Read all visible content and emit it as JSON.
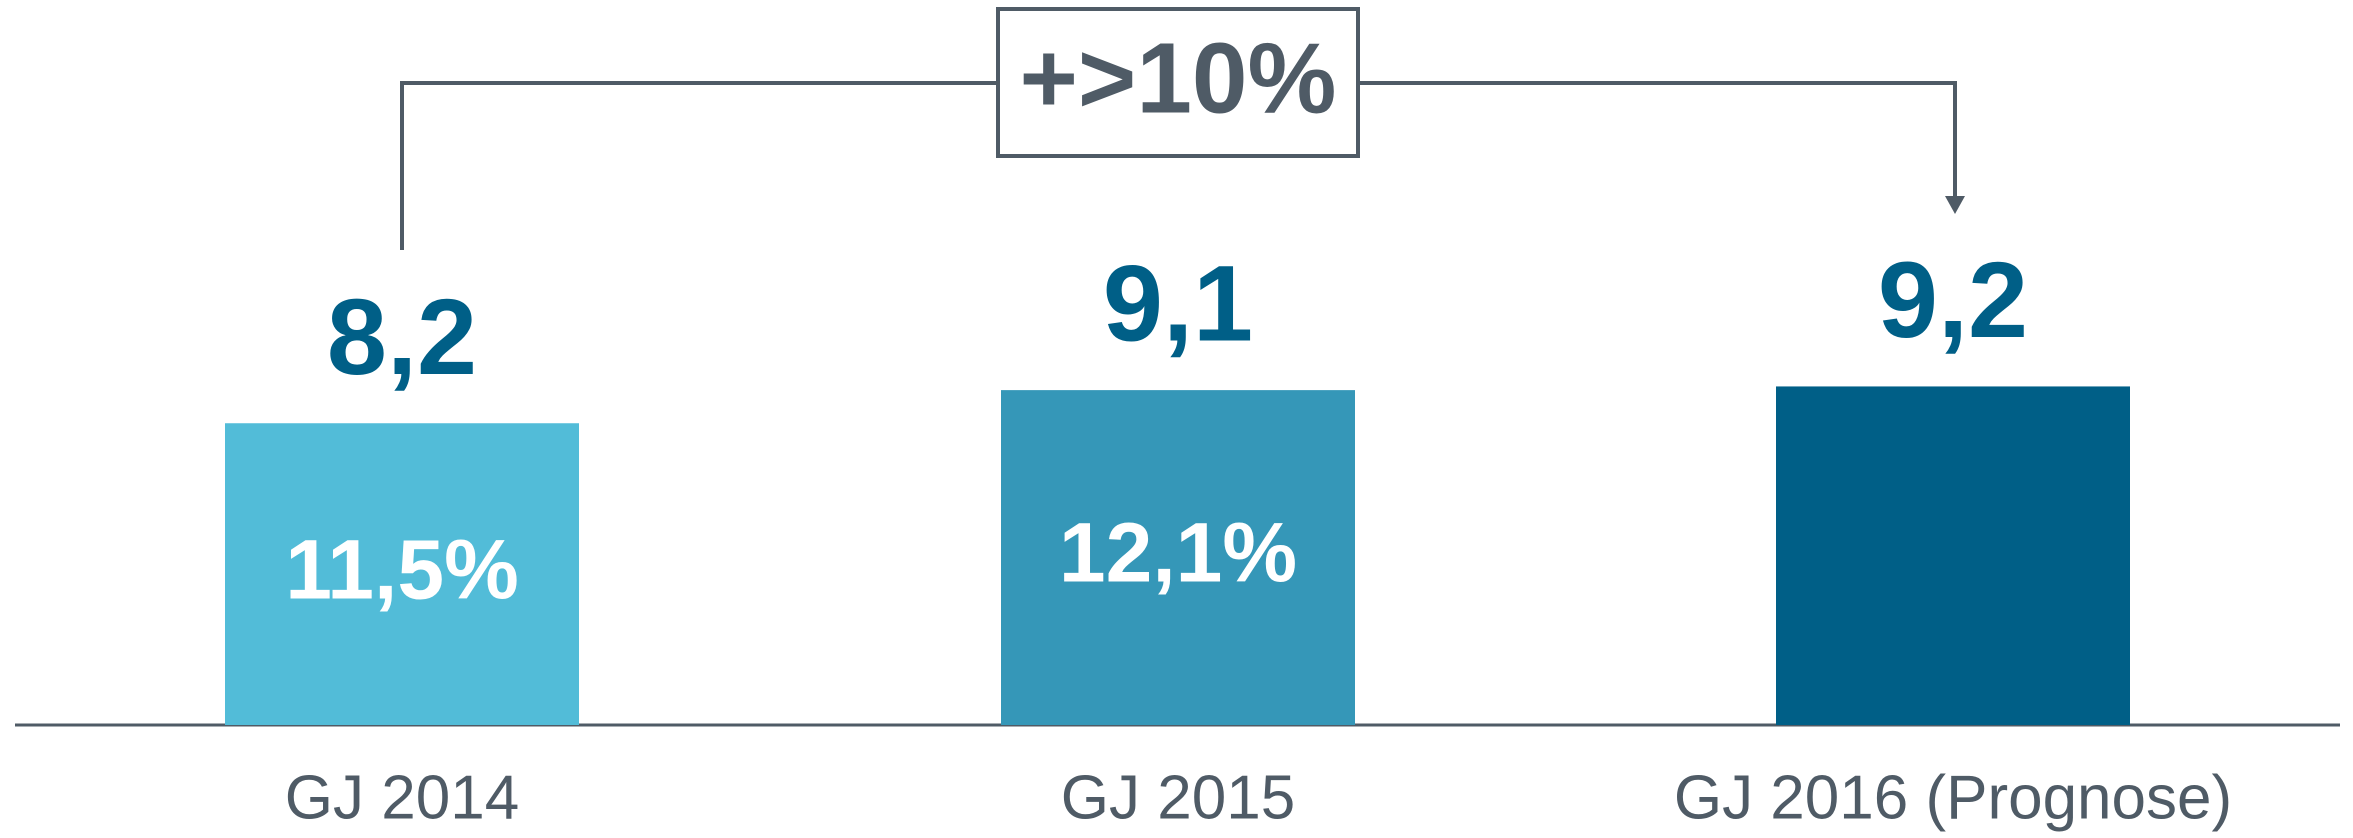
{
  "chart_data": {
    "type": "bar",
    "categories": [
      "GJ 2014",
      "GJ 2015",
      "GJ 2016 (Prognose)"
    ],
    "values": [
      8.2,
      9.1,
      9.2
    ],
    "value_labels": [
      "8,2",
      "9,1",
      "9,2"
    ],
    "inner_labels": [
      "11,5%",
      "12,1%",
      null
    ],
    "colors": [
      "#52bcd8",
      "#3597b8",
      "#005f87"
    ],
    "ylim": [
      0,
      20
    ],
    "annotation": "+>10%"
  }
}
